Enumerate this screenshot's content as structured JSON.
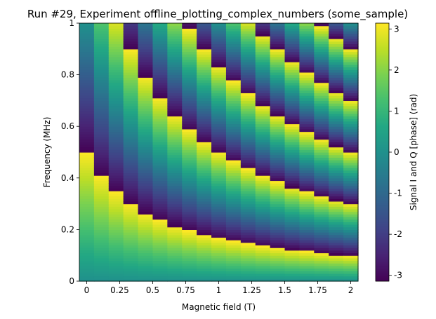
{
  "chart_data": {
    "type": "heatmap",
    "title": "Run #29, Experiment offline_plotting_complex_numbers (some_sample)",
    "xlabel": "Magnetic field (T)",
    "ylabel": "Frequency (MHz)",
    "x_range": [
      0,
      2
    ],
    "y_range": [
      0,
      1
    ],
    "x_ticks": [
      0,
      0.25,
      0.5,
      0.75,
      1,
      1.25,
      1.5,
      1.75,
      2
    ],
    "x_tick_labels": [
      "0",
      "0.25",
      "0.5",
      "0.75",
      "1",
      "1.25",
      "1.5",
      "1.75",
      "2"
    ],
    "y_ticks": [
      0,
      0.2,
      0.4,
      0.6,
      0.8,
      1
    ],
    "y_tick_labels": [
      "0",
      "0.2",
      "0.4",
      "0.6",
      "0.8",
      "1"
    ],
    "x_columns": 19,
    "y_rows": 100,
    "values_formula": "phase = angle(exp(i * 2*pi * f * (1 + 2*B)) ) , wrapped to [-pi, pi], with phase(0,0) = 0",
    "colorbar": {
      "label": "Signal I and Q [phase] (rad)",
      "range": [
        -3.1416,
        3.1416
      ],
      "ticks": [
        -3,
        -2,
        -1,
        0,
        1,
        2,
        3
      ],
      "tick_labels": [
        "-3",
        "-2",
        "-1",
        "0",
        "1",
        "2",
        "3"
      ],
      "colormap": "viridis"
    },
    "grid": false
  }
}
